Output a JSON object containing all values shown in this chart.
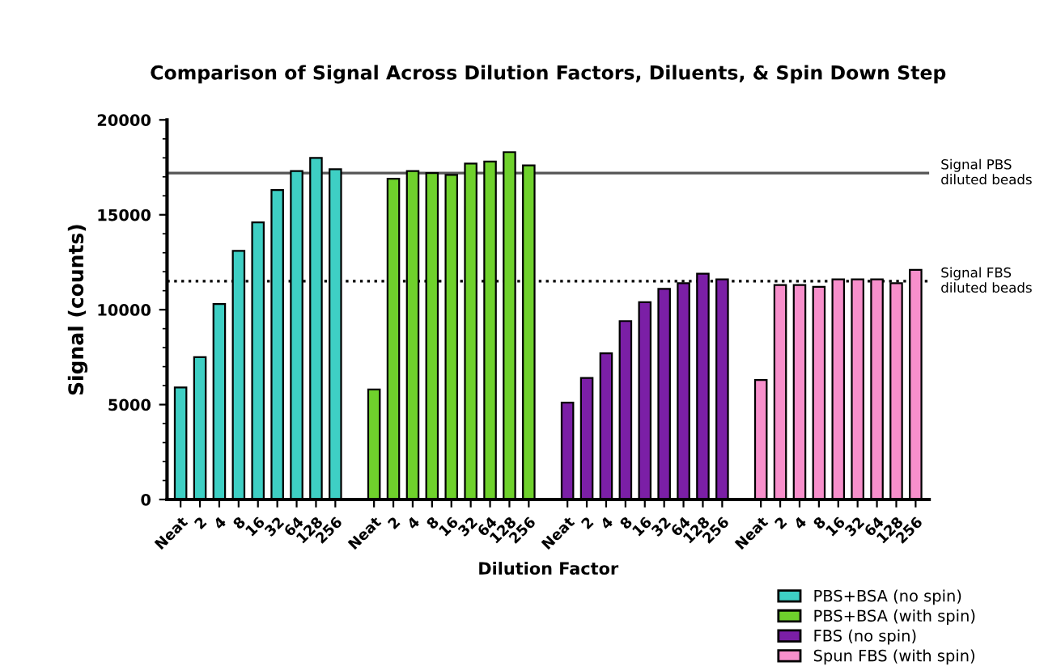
{
  "chart_data": {
    "type": "bar",
    "title": "Comparison of Signal Across Dilution Factors, Diluents, & Spin Down Step",
    "xlabel": "Dilution Factor",
    "ylabel": "Signal (counts)",
    "categories": [
      "Neat",
      "2",
      "4",
      "8",
      "16",
      "32",
      "64",
      "128",
      "256",
      null,
      "Neat",
      "2",
      "4",
      "8",
      "16",
      "32",
      "64",
      "128",
      "256",
      null,
      "Neat",
      "2",
      "4",
      "8",
      "16",
      "32",
      "64",
      "128",
      "256",
      null,
      "Neat",
      "2",
      "4",
      "8",
      "16",
      "32",
      "64",
      "128",
      "256"
    ],
    "series": [
      {
        "name": "PBS+BSA (no spin)",
        "color": "#3ecfc4",
        "values": [
          5900,
          7500,
          10300,
          13100,
          14600,
          16300,
          17300,
          18000,
          17400,
          null,
          null,
          null,
          null,
          null,
          null,
          null,
          null,
          null,
          null,
          null,
          null,
          null,
          null,
          null,
          null,
          null,
          null,
          null,
          null,
          null,
          null,
          null,
          null,
          null,
          null,
          null,
          null,
          null,
          null
        ]
      },
      {
        "name": "PBS+BSA (with spin)",
        "color": "#6fd12c",
        "values": [
          null,
          null,
          null,
          null,
          null,
          null,
          null,
          null,
          null,
          null,
          5800,
          16900,
          17300,
          17200,
          17100,
          17700,
          17800,
          18300,
          17600,
          null,
          null,
          null,
          null,
          null,
          null,
          null,
          null,
          null,
          null,
          null,
          null,
          null,
          null,
          null,
          null,
          null,
          null,
          null,
          null
        ]
      },
      {
        "name": "FBS (no spin)",
        "color": "#7b1fa6",
        "values": [
          null,
          null,
          null,
          null,
          null,
          null,
          null,
          null,
          null,
          null,
          null,
          null,
          null,
          null,
          null,
          null,
          null,
          null,
          null,
          null,
          5100,
          6400,
          7700,
          9400,
          10400,
          11100,
          11400,
          11900,
          11600,
          null,
          null,
          null,
          null,
          null,
          null,
          null,
          null,
          null,
          null
        ]
      },
      {
        "name": "Spun FBS (with spin)",
        "color": "#f78fcb",
        "values": [
          null,
          null,
          null,
          null,
          null,
          null,
          null,
          null,
          null,
          null,
          null,
          null,
          null,
          null,
          null,
          null,
          null,
          null,
          null,
          null,
          null,
          null,
          null,
          null,
          null,
          null,
          null,
          null,
          null,
          null,
          6300,
          11300,
          11300,
          11200,
          11600,
          11600,
          11600,
          11400,
          12100
        ]
      }
    ],
    "ylim": [
      0,
      20000
    ],
    "yticks": [
      0,
      5000,
      10000,
      15000,
      20000
    ],
    "grid": false,
    "legend": "bottom right",
    "ref_lines": [
      {
        "axis": "y",
        "value": 17200,
        "label": "Signal PBS\ndiluted beads",
        "color": "#555555",
        "line_style": "solid"
      },
      {
        "axis": "y",
        "value": 11500,
        "label": "Signal FBS\ndiluted beads",
        "color": "#000000",
        "line_style": "dotted"
      }
    ]
  }
}
